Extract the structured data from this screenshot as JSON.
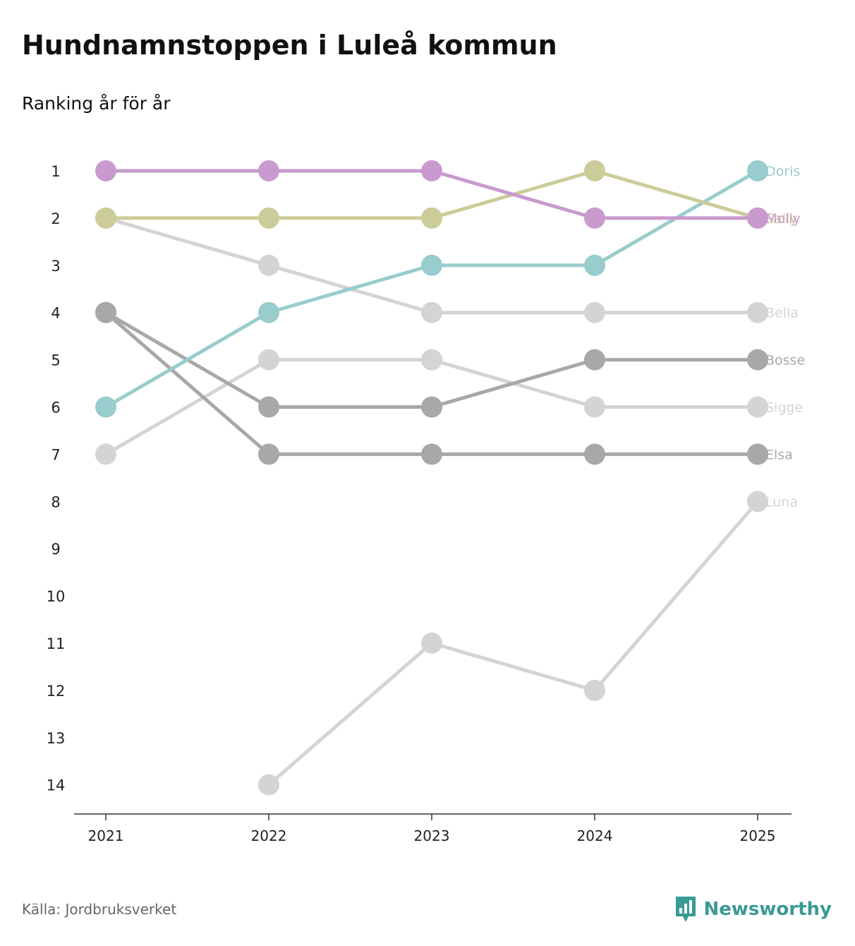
{
  "header": {
    "title": "Hundnamnstoppen i Luleå kommun",
    "subtitle": "Ranking år för år"
  },
  "footer": {
    "source": "Källa: Jordbruksverket",
    "brand": "Newsworthy"
  },
  "colors": {
    "Molly": "#c99ace",
    "Sally": "#cccc99",
    "Doris": "#99cccc",
    "Bella": "#d4d4d4",
    "Sigge": "#d4d4d4",
    "Luna": "#d4d4d4",
    "Bosse": "#a8a8a8",
    "Elsa": "#a8a8a8",
    "brand": "#3a9a94"
  },
  "chart_data": {
    "type": "line",
    "x": [
      "2021",
      "2022",
      "2023",
      "2024",
      "2025"
    ],
    "y_ticks": [
      1,
      2,
      3,
      4,
      5,
      6,
      7,
      8,
      9,
      10,
      11,
      12,
      13,
      14
    ],
    "ylim": [
      1,
      14
    ],
    "y_inverted": true,
    "series": [
      {
        "name": "Luna",
        "values": [
          null,
          14,
          11,
          12,
          8
        ]
      },
      {
        "name": "Sigge",
        "values": [
          7,
          5,
          5,
          6,
          6
        ]
      },
      {
        "name": "Bella",
        "values": [
          2,
          3,
          4,
          4,
          4
        ]
      },
      {
        "name": "Elsa",
        "values": [
          4,
          7,
          7,
          7,
          7
        ]
      },
      {
        "name": "Bosse",
        "values": [
          4,
          6,
          6,
          5,
          5
        ]
      },
      {
        "name": "Doris",
        "values": [
          6,
          4,
          3,
          3,
          1
        ]
      },
      {
        "name": "Sally",
        "values": [
          2,
          2,
          2,
          1,
          2
        ]
      },
      {
        "name": "Molly",
        "values": [
          1,
          1,
          1,
          2,
          2
        ]
      }
    ],
    "legend": "end-labels-right"
  }
}
